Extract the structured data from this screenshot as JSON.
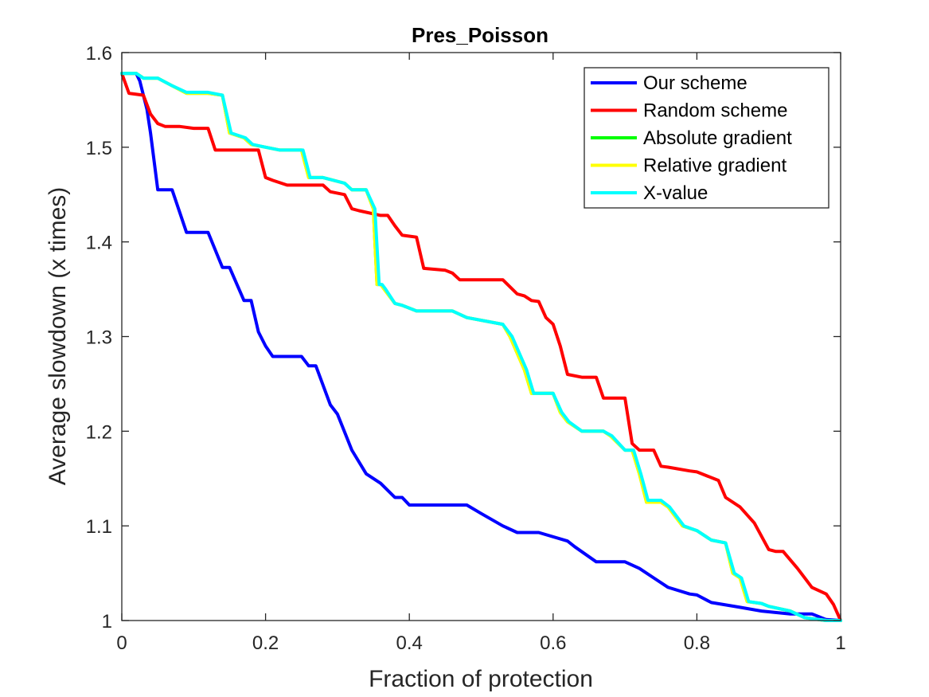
{
  "chart_data": {
    "type": "line",
    "title": "Pres_Poisson",
    "xlabel": "Fraction of protection",
    "ylabel": "Average slowdown (x times)",
    "xlim": [
      0,
      1
    ],
    "ylim": [
      1,
      1.6
    ],
    "xticks": [
      0,
      0.2,
      0.4,
      0.6,
      0.8,
      1
    ],
    "xtick_labels": [
      "0",
      "0.2",
      "0.4",
      "0.6",
      "0.8",
      "1"
    ],
    "yticks": [
      1,
      1.1,
      1.2,
      1.3,
      1.4,
      1.5,
      1.6
    ],
    "ytick_labels": [
      "1",
      "1.1",
      "1.2",
      "1.3",
      "1.4",
      "1.5",
      "1.6"
    ],
    "grid": false,
    "legend_position": "top-right",
    "series": [
      {
        "name": "Our scheme",
        "color": "#0000ff",
        "x": [
          0,
          0.02,
          0.025,
          0.035,
          0.04,
          0.05,
          0.07,
          0.09,
          0.12,
          0.14,
          0.15,
          0.17,
          0.18,
          0.19,
          0.2,
          0.21,
          0.25,
          0.26,
          0.27,
          0.29,
          0.3,
          0.32,
          0.34,
          0.36,
          0.38,
          0.39,
          0.4,
          0.44,
          0.48,
          0.5,
          0.53,
          0.55,
          0.58,
          0.62,
          0.63,
          0.66,
          0.7,
          0.72,
          0.74,
          0.76,
          0.79,
          0.8,
          0.82,
          0.86,
          0.89,
          0.93,
          0.96,
          0.98,
          1.0
        ],
        "y": [
          1.578,
          1.578,
          1.57,
          1.54,
          1.515,
          1.455,
          1.455,
          1.41,
          1.41,
          1.373,
          1.373,
          1.338,
          1.338,
          1.305,
          1.29,
          1.279,
          1.279,
          1.269,
          1.269,
          1.228,
          1.218,
          1.18,
          1.155,
          1.145,
          1.13,
          1.13,
          1.122,
          1.122,
          1.122,
          1.113,
          1.1,
          1.093,
          1.093,
          1.084,
          1.078,
          1.062,
          1.062,
          1.055,
          1.045,
          1.035,
          1.028,
          1.027,
          1.019,
          1.014,
          1.01,
          1.007,
          1.007,
          1.001,
          1.0
        ]
      },
      {
        "name": "Random scheme",
        "color": "#ff0000",
        "x": [
          0,
          0.01,
          0.03,
          0.04,
          0.05,
          0.06,
          0.08,
          0.1,
          0.12,
          0.13,
          0.19,
          0.2,
          0.21,
          0.23,
          0.28,
          0.29,
          0.31,
          0.32,
          0.33,
          0.36,
          0.37,
          0.38,
          0.39,
          0.41,
          0.42,
          0.45,
          0.46,
          0.47,
          0.53,
          0.55,
          0.56,
          0.57,
          0.58,
          0.59,
          0.6,
          0.61,
          0.62,
          0.64,
          0.66,
          0.67,
          0.7,
          0.71,
          0.72,
          0.74,
          0.75,
          0.76,
          0.79,
          0.8,
          0.83,
          0.84,
          0.86,
          0.88,
          0.9,
          0.91,
          0.92,
          0.94,
          0.96,
          0.98,
          0.99,
          1.0
        ],
        "y": [
          1.578,
          1.557,
          1.555,
          1.535,
          1.525,
          1.522,
          1.522,
          1.52,
          1.52,
          1.497,
          1.497,
          1.468,
          1.465,
          1.46,
          1.46,
          1.453,
          1.45,
          1.435,
          1.433,
          1.428,
          1.428,
          1.417,
          1.407,
          1.405,
          1.372,
          1.37,
          1.367,
          1.36,
          1.36,
          1.345,
          1.343,
          1.338,
          1.337,
          1.32,
          1.313,
          1.29,
          1.26,
          1.257,
          1.257,
          1.235,
          1.235,
          1.187,
          1.18,
          1.18,
          1.163,
          1.162,
          1.158,
          1.157,
          1.148,
          1.13,
          1.12,
          1.103,
          1.075,
          1.073,
          1.073,
          1.055,
          1.035,
          1.028,
          1.017,
          1.0
        ]
      },
      {
        "name": "Absolute gradient",
        "color": "#00ff00",
        "x": [
          0,
          0.02,
          0.03,
          0.05,
          0.07,
          0.09,
          0.12,
          0.14,
          0.15,
          0.17,
          0.18,
          0.2,
          0.22,
          0.25,
          0.26,
          0.28,
          0.31,
          0.32,
          0.34,
          0.35,
          0.355,
          0.36,
          0.365,
          0.38,
          0.39,
          0.41,
          0.46,
          0.48,
          0.53,
          0.54,
          0.56,
          0.57,
          0.6,
          0.61,
          0.62,
          0.64,
          0.67,
          0.68,
          0.7,
          0.71,
          0.72,
          0.73,
          0.75,
          0.76,
          0.78,
          0.8,
          0.82,
          0.84,
          0.85,
          0.86,
          0.87,
          0.89,
          0.9,
          0.93,
          0.95,
          0.98,
          1.0
        ],
        "y": [
          1.578,
          1.578,
          1.573,
          1.573,
          1.565,
          1.557,
          1.557,
          1.555,
          1.515,
          1.51,
          1.503,
          1.5,
          1.497,
          1.497,
          1.468,
          1.468,
          1.462,
          1.455,
          1.455,
          1.435,
          1.355,
          1.355,
          1.35,
          1.335,
          1.333,
          1.327,
          1.327,
          1.32,
          1.313,
          1.3,
          1.265,
          1.24,
          1.24,
          1.22,
          1.21,
          1.2,
          1.2,
          1.195,
          1.18,
          1.18,
          1.155,
          1.125,
          1.125,
          1.12,
          1.1,
          1.095,
          1.085,
          1.082,
          1.05,
          1.045,
          1.02,
          1.018,
          1.015,
          1.01,
          1.003,
          1.0,
          1.0
        ]
      },
      {
        "name": "Relative gradient",
        "color": "#ffff00",
        "x": [
          0,
          0.02,
          0.03,
          0.05,
          0.07,
          0.09,
          0.12,
          0.14,
          0.15,
          0.17,
          0.18,
          0.2,
          0.22,
          0.25,
          0.26,
          0.28,
          0.31,
          0.32,
          0.34,
          0.35,
          0.355,
          0.36,
          0.365,
          0.38,
          0.39,
          0.41,
          0.46,
          0.48,
          0.53,
          0.54,
          0.56,
          0.57,
          0.6,
          0.61,
          0.62,
          0.64,
          0.67,
          0.68,
          0.7,
          0.71,
          0.72,
          0.73,
          0.75,
          0.76,
          0.78,
          0.8,
          0.82,
          0.84,
          0.85,
          0.86,
          0.87,
          0.89,
          0.9,
          0.93,
          0.95,
          0.98,
          1.0
        ],
        "y": [
          1.578,
          1.578,
          1.573,
          1.573,
          1.565,
          1.557,
          1.557,
          1.555,
          1.515,
          1.51,
          1.503,
          1.5,
          1.497,
          1.497,
          1.468,
          1.468,
          1.462,
          1.455,
          1.455,
          1.435,
          1.355,
          1.355,
          1.35,
          1.335,
          1.333,
          1.327,
          1.327,
          1.32,
          1.313,
          1.3,
          1.265,
          1.24,
          1.24,
          1.22,
          1.21,
          1.2,
          1.2,
          1.195,
          1.18,
          1.18,
          1.155,
          1.125,
          1.125,
          1.12,
          1.1,
          1.095,
          1.085,
          1.082,
          1.05,
          1.045,
          1.02,
          1.018,
          1.015,
          1.01,
          1.003,
          1.0,
          1.0
        ]
      },
      {
        "name": "X-value",
        "color": "#00ffff",
        "x": [
          0,
          0.02,
          0.03,
          0.05,
          0.07,
          0.09,
          0.12,
          0.14,
          0.152,
          0.172,
          0.182,
          0.2,
          0.22,
          0.252,
          0.262,
          0.28,
          0.31,
          0.32,
          0.34,
          0.352,
          0.358,
          0.362,
          0.367,
          0.38,
          0.39,
          0.41,
          0.46,
          0.48,
          0.53,
          0.543,
          0.563,
          0.573,
          0.6,
          0.612,
          0.622,
          0.64,
          0.67,
          0.682,
          0.7,
          0.712,
          0.722,
          0.732,
          0.75,
          0.762,
          0.782,
          0.8,
          0.82,
          0.84,
          0.852,
          0.862,
          0.872,
          0.89,
          0.9,
          0.93,
          0.95,
          0.98,
          1.0
        ],
        "y": [
          1.578,
          1.578,
          1.573,
          1.573,
          1.565,
          1.558,
          1.558,
          1.555,
          1.515,
          1.51,
          1.503,
          1.5,
          1.497,
          1.497,
          1.468,
          1.468,
          1.462,
          1.455,
          1.455,
          1.435,
          1.355,
          1.355,
          1.35,
          1.335,
          1.333,
          1.327,
          1.327,
          1.32,
          1.313,
          1.3,
          1.265,
          1.24,
          1.24,
          1.22,
          1.21,
          1.2,
          1.2,
          1.195,
          1.18,
          1.18,
          1.155,
          1.127,
          1.127,
          1.12,
          1.1,
          1.095,
          1.085,
          1.082,
          1.05,
          1.045,
          1.02,
          1.018,
          1.015,
          1.01,
          1.003,
          1.0,
          1.0
        ]
      }
    ]
  }
}
